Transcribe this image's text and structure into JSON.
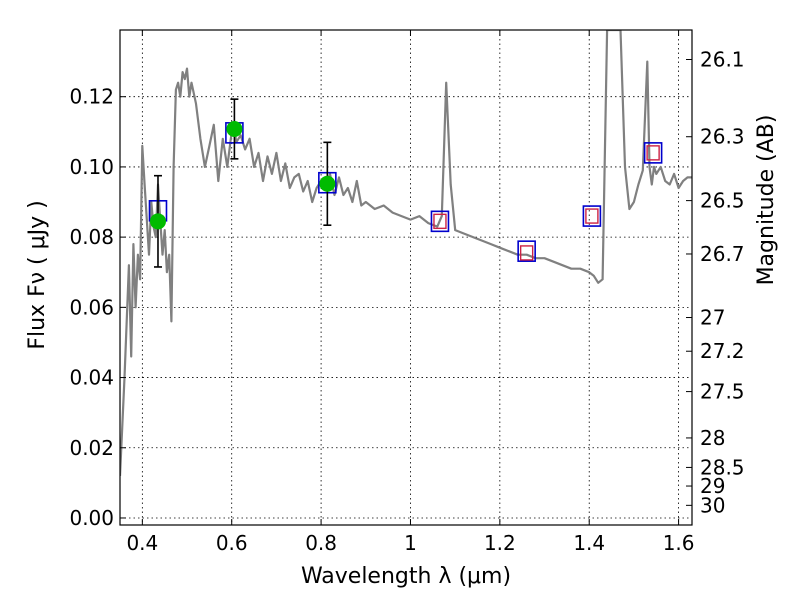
{
  "chart_data": {
    "type": "line",
    "xlabel": "Wavelength  λ (μm)",
    "ylabel": "Flux  Fν  ( μJy )",
    "ylabel_right": "Magnitude (AB)",
    "xlim": [
      0.35,
      1.63
    ],
    "ylim": [
      -0.002,
      0.139
    ],
    "grid": true,
    "x_ticks": [
      0.4,
      0.6,
      0.8,
      1.0,
      1.2,
      1.4,
      1.6
    ],
    "x_tick_labels": [
      "0.4",
      "0.6",
      "0.8",
      "1",
      "1.2",
      "1.4",
      "1.6"
    ],
    "y_ticks": [
      0.0,
      0.02,
      0.04,
      0.06,
      0.08,
      0.1,
      0.12
    ],
    "y_tick_labels": [
      "0.00",
      "0.02",
      "0.04",
      "0.06",
      "0.08",
      "0.10",
      "0.12"
    ],
    "mag_ticks": [
      {
        "label": "26.1",
        "flux": 0.1306
      },
      {
        "label": "26.3",
        "flux": 0.1086
      },
      {
        "label": "26.5",
        "flux": 0.0904
      },
      {
        "label": "26.7",
        "flux": 0.0752
      },
      {
        "label": "27",
        "flux": 0.0571
      },
      {
        "label": "27.2",
        "flux": 0.0475
      },
      {
        "label": "27.5",
        "flux": 0.036
      },
      {
        "label": "28",
        "flux": 0.0228
      },
      {
        "label": "28.5",
        "flux": 0.0144
      },
      {
        "label": "29",
        "flux": 0.0091
      },
      {
        "label": "30",
        "flux": 0.0036
      }
    ],
    "series": [
      {
        "type": "line",
        "color": "#808080",
        "x": [
          0.35,
          0.36,
          0.37,
          0.375,
          0.38,
          0.385,
          0.39,
          0.395,
          0.4,
          0.405,
          0.41,
          0.415,
          0.42,
          0.425,
          0.43,
          0.435,
          0.44,
          0.445,
          0.45,
          0.455,
          0.46,
          0.465,
          0.47,
          0.475,
          0.48,
          0.485,
          0.49,
          0.495,
          0.5,
          0.505,
          0.51,
          0.52,
          0.53,
          0.54,
          0.55,
          0.56,
          0.57,
          0.58,
          0.59,
          0.6,
          0.605,
          0.61,
          0.62,
          0.63,
          0.64,
          0.65,
          0.66,
          0.67,
          0.68,
          0.69,
          0.7,
          0.71,
          0.72,
          0.73,
          0.74,
          0.75,
          0.76,
          0.77,
          0.78,
          0.79,
          0.8,
          0.81,
          0.82,
          0.83,
          0.84,
          0.85,
          0.86,
          0.87,
          0.88,
          0.89,
          0.9,
          0.92,
          0.94,
          0.96,
          0.98,
          1.0,
          1.02,
          1.04,
          1.06,
          1.07,
          1.08,
          1.09,
          1.1,
          1.12,
          1.14,
          1.16,
          1.18,
          1.2,
          1.22,
          1.24,
          1.26,
          1.28,
          1.3,
          1.32,
          1.34,
          1.36,
          1.38,
          1.4,
          1.41,
          1.42,
          1.43,
          1.44,
          1.45,
          1.46,
          1.47,
          1.48,
          1.49,
          1.5,
          1.51,
          1.52,
          1.53,
          1.535,
          1.54,
          1.545,
          1.55,
          1.56,
          1.57,
          1.58,
          1.59,
          1.6,
          1.61,
          1.62,
          1.63
        ],
        "y": [
          0.012,
          0.04,
          0.072,
          0.046,
          0.078,
          0.06,
          0.075,
          0.068,
          0.106,
          0.095,
          0.085,
          0.075,
          0.09,
          0.083,
          0.08,
          0.095,
          0.085,
          0.075,
          0.082,
          0.07,
          0.075,
          0.056,
          0.1,
          0.122,
          0.124,
          0.12,
          0.127,
          0.125,
          0.128,
          0.12,
          0.124,
          0.118,
          0.108,
          0.1,
          0.106,
          0.112,
          0.096,
          0.108,
          0.1,
          0.11,
          0.112,
          0.107,
          0.109,
          0.105,
          0.108,
          0.1,
          0.104,
          0.096,
          0.103,
          0.098,
          0.104,
          0.096,
          0.101,
          0.094,
          0.097,
          0.098,
          0.093,
          0.096,
          0.09,
          0.094,
          0.096,
          0.094,
          0.098,
          0.092,
          0.097,
          0.092,
          0.094,
          0.09,
          0.096,
          0.089,
          0.09,
          0.088,
          0.089,
          0.087,
          0.086,
          0.085,
          0.086,
          0.084,
          0.083,
          0.086,
          0.124,
          0.095,
          0.082,
          0.081,
          0.08,
          0.079,
          0.078,
          0.077,
          0.076,
          0.075,
          0.075,
          0.074,
          0.074,
          0.073,
          0.072,
          0.071,
          0.071,
          0.07,
          0.069,
          0.067,
          0.068,
          0.139,
          0.139,
          0.139,
          0.139,
          0.1,
          0.088,
          0.09,
          0.095,
          0.099,
          0.13,
          0.1,
          0.095,
          0.1,
          0.098,
          0.1,
          0.096,
          0.095,
          0.098,
          0.094,
          0.096,
          0.097,
          0.097
        ]
      }
    ],
    "photometry": [
      {
        "x": 0.435,
        "y": 0.0875
      },
      {
        "x": 0.606,
        "y": 0.1097
      },
      {
        "x": 0.814,
        "y": 0.0955
      },
      {
        "x": 1.066,
        "y": 0.0845
      },
      {
        "x": 1.26,
        "y": 0.076
      },
      {
        "x": 1.406,
        "y": 0.086
      },
      {
        "x": 1.543,
        "y": 0.104
      }
    ],
    "model_points": [
      {
        "x": 1.066,
        "y": 0.0845
      },
      {
        "x": 1.26,
        "y": 0.0755
      },
      {
        "x": 1.406,
        "y": 0.086
      },
      {
        "x": 1.543,
        "y": 0.104
      }
    ],
    "measurements": [
      {
        "x": 0.435,
        "y": 0.0845,
        "yerr": 0.013
      },
      {
        "x": 0.606,
        "y": 0.1108,
        "yerr": 0.0085
      },
      {
        "x": 0.814,
        "y": 0.0952,
        "yerr": 0.0118
      }
    ],
    "colors": {
      "model_line": "#808080",
      "photometry_square": "#0000cc",
      "model_square": "#cc2244",
      "measurement": "#00bb00",
      "errorbar": "#000000",
      "grid": "#000000"
    }
  }
}
